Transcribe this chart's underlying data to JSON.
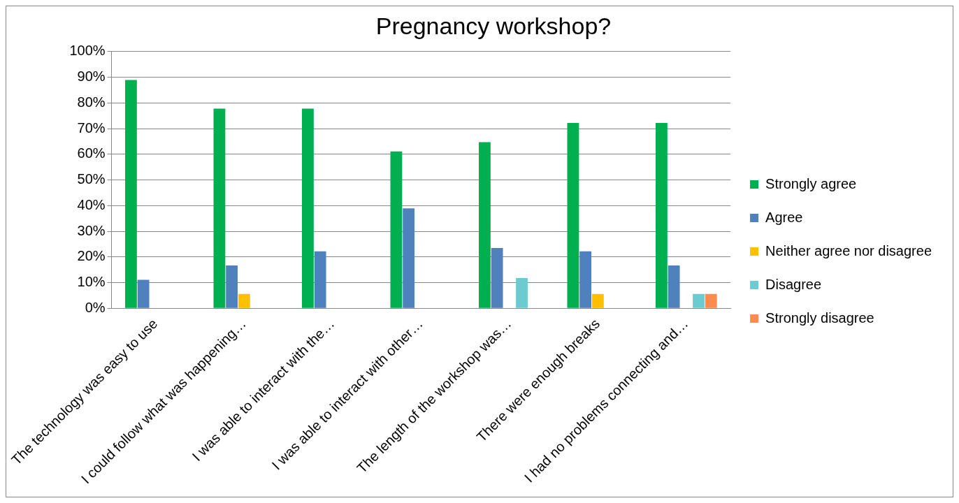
{
  "chart_data": {
    "type": "bar",
    "title": "Pregnancy workshop?",
    "categories": [
      "The technology was easy to use",
      "I could follow what was happening…",
      "I was able to interact with the…",
      "I was able to interact with other…",
      "The length of the workshop was…",
      "There were enough breaks",
      "I had no problems connecting and…"
    ],
    "series": [
      {
        "name": "Strongly agree",
        "color": "#00b050",
        "values": [
          88.9,
          77.8,
          77.8,
          61.1,
          64.7,
          72.2,
          72.2
        ]
      },
      {
        "name": "Agree",
        "color": "#4f81bd",
        "values": [
          11.1,
          16.7,
          22.2,
          38.9,
          23.5,
          22.2,
          16.7
        ]
      },
      {
        "name": "Neither agree nor disagree",
        "color": "#ffc000",
        "values": [
          null,
          5.6,
          null,
          null,
          null,
          5.6,
          null
        ]
      },
      {
        "name": "Disagree",
        "color": "#6ccbd0",
        "values": [
          null,
          null,
          null,
          null,
          11.8,
          null,
          5.6
        ]
      },
      {
        "name": "Strongly disagree",
        "color": "#fb8c50",
        "values": [
          null,
          null,
          null,
          null,
          null,
          null,
          5.6
        ]
      }
    ],
    "ylim": [
      0,
      100
    ],
    "yticks": [
      {
        "value": 0,
        "label": "0%"
      },
      {
        "value": 10,
        "label": "10%"
      },
      {
        "value": 20,
        "label": "20%"
      },
      {
        "value": 30,
        "label": "30%"
      },
      {
        "value": 40,
        "label": "40%"
      },
      {
        "value": 50,
        "label": "50%"
      },
      {
        "value": 60,
        "label": "60%"
      },
      {
        "value": 70,
        "label": "70%"
      },
      {
        "value": 80,
        "label": "80%"
      },
      {
        "value": 90,
        "label": "90%"
      },
      {
        "value": 100,
        "label": "100%"
      }
    ],
    "grid": "y",
    "legend": "right"
  }
}
